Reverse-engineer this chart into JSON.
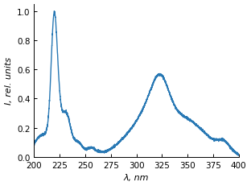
{
  "line_color": "#2878b4",
  "line_width": 1.0,
  "xlim": [
    200,
    400
  ],
  "ylim": [
    0,
    1.05
  ],
  "xticks": [
    200,
    225,
    250,
    275,
    300,
    325,
    350,
    375,
    400
  ],
  "yticks": [
    0,
    0.2,
    0.4,
    0.6,
    0.8,
    1.0
  ],
  "xlabel": "λ, nm",
  "ylabel": "I, rel. units",
  "bg_color": "#ffffff"
}
